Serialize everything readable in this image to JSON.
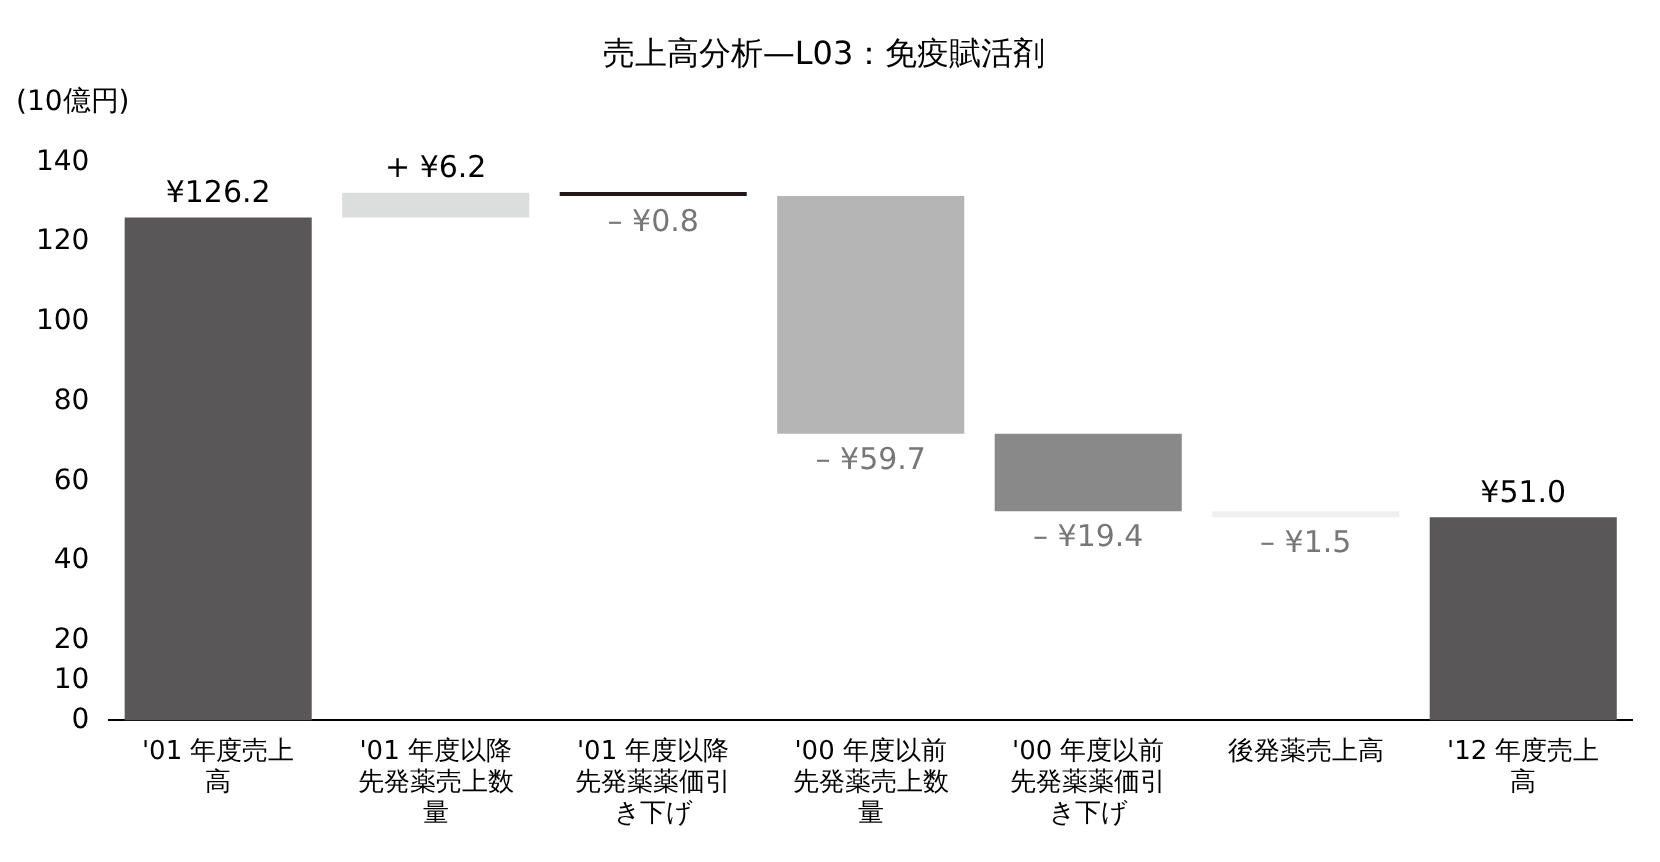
{
  "chart_data": {
    "type": "bar",
    "title": "売上高分析—L03：免疫賦活剤",
    "ylabel": "(10億円)",
    "categories": [
      "'01 年度売上高",
      "'01 年度以降先発薬売上数量",
      "'01 年度以降先発薬薬価引き下げ",
      "'00 年度以前先発薬売上数量",
      "'00 年度以前先発薬薬価引き下げ",
      "後発薬売上高",
      "'12 年度売上高"
    ],
    "values": [
      126.2,
      6.2,
      -0.8,
      -59.7,
      -19.4,
      -1.5,
      51.0
    ],
    "base": [
      0,
      126.2,
      132.4,
      131.6,
      71.9,
      52.5,
      0
    ],
    "colors": [
      "#595757",
      "#dcdddd",
      "#231815",
      "#b5b5b6",
      "#898989",
      "#efefef",
      "#595757"
    ],
    "value_labels": [
      "¥126.2",
      "+ ¥6.2",
      "– ¥0.8",
      "– ¥59.7",
      "– ¥19.4",
      "– ¥1.5",
      "¥51.0"
    ],
    "ylim": [
      0,
      140
    ],
    "yticks": [
      0,
      10,
      20,
      40,
      60,
      80,
      100,
      120,
      140
    ],
    "grid": false,
    "legend": false
  }
}
